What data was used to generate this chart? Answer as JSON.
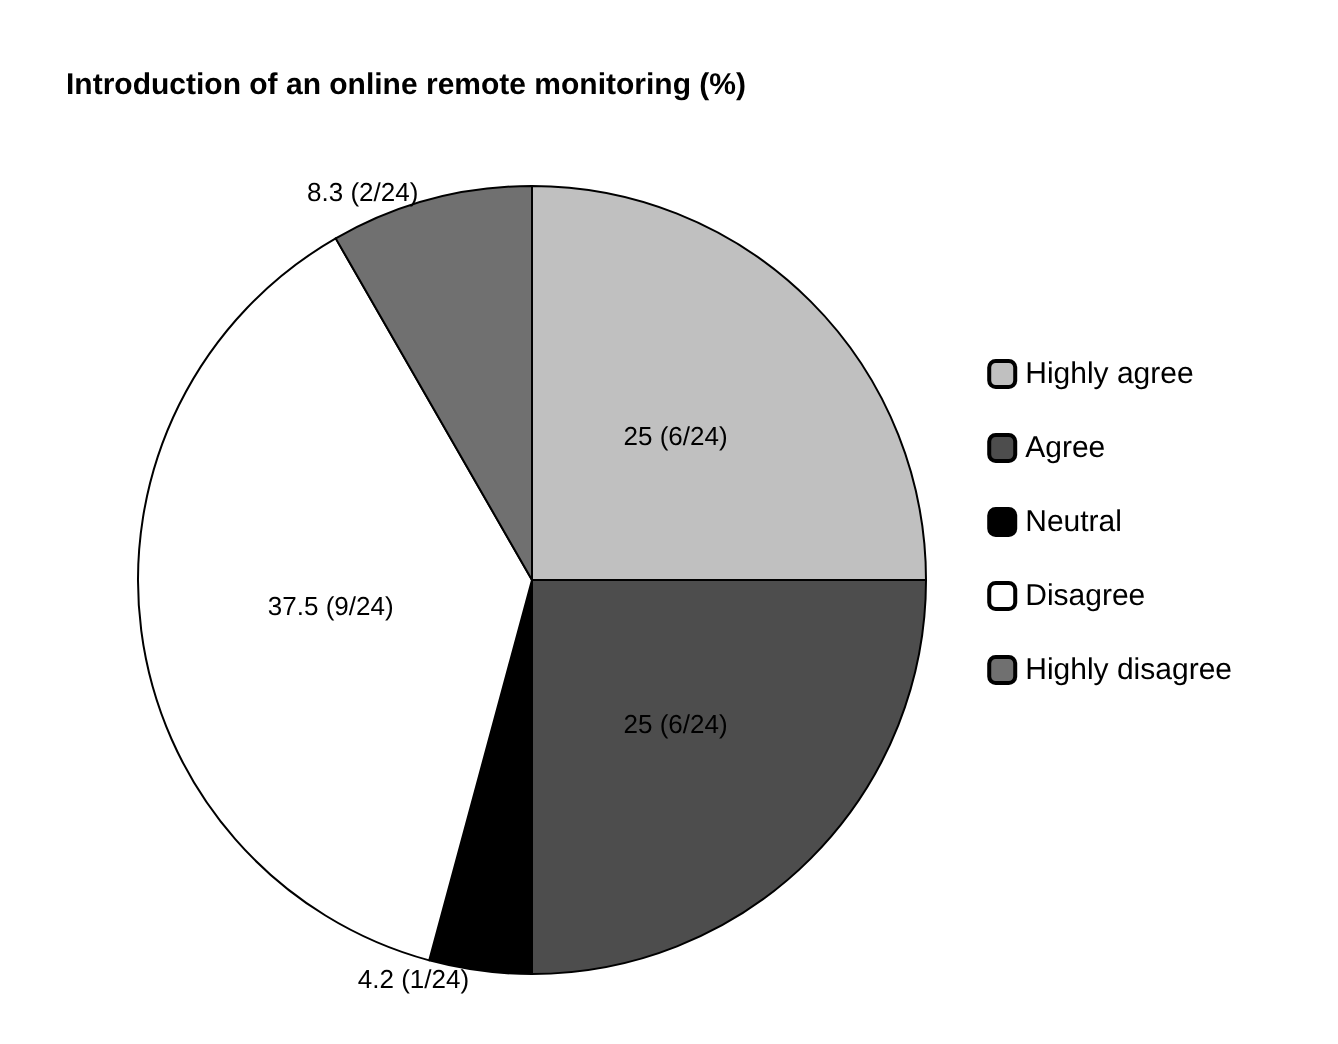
{
  "chart_data": {
    "type": "pie",
    "title": "Introduction of an online remote monitoring (%)",
    "categories": [
      "Highly agree",
      "Agree",
      "Neutral",
      "Disagree",
      "Highly disagree"
    ],
    "values": [
      25,
      25,
      4.2,
      37.5,
      8.3
    ],
    "colors": [
      "#c0c0c0",
      "#4d4d4d",
      "#000000",
      "#ffffff",
      "#707070"
    ],
    "value_labels": [
      "25 (6/24)",
      "25 (6/24)",
      "4.2 (1/24)",
      "37.5 (9/24)",
      "8.3 (2/24)"
    ],
    "legend": "right"
  }
}
